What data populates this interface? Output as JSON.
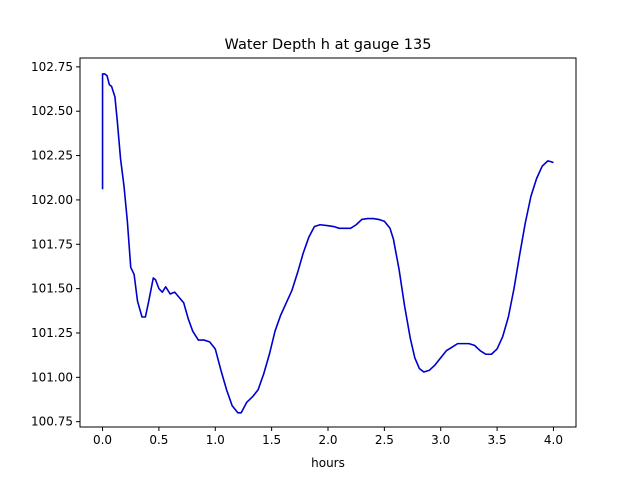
{
  "chart_data": {
    "type": "line",
    "title": "Water Depth h at gauge 135",
    "xlabel": "hours",
    "ylabel": "",
    "xlim": [
      -0.2,
      4.2
    ],
    "ylim": [
      100.72,
      102.8
    ],
    "xticks": [
      0.0,
      0.5,
      1.0,
      1.5,
      2.0,
      2.5,
      3.0,
      3.5,
      4.0
    ],
    "xtick_labels": [
      "0.0",
      "0.5",
      "1.0",
      "1.5",
      "2.0",
      "2.5",
      "3.0",
      "3.5",
      "4.0"
    ],
    "yticks": [
      100.75,
      101.0,
      101.25,
      101.5,
      101.75,
      102.0,
      102.25,
      102.5,
      102.75
    ],
    "ytick_labels": [
      "100.75",
      "101.00",
      "101.25",
      "101.50",
      "101.75",
      "102.00",
      "102.25",
      "102.50",
      "102.75"
    ],
    "grid": false,
    "series": [
      {
        "color": "#0000cc",
        "points": [
          [
            0.0,
            102.06
          ],
          [
            0.0,
            102.71
          ],
          [
            0.02,
            102.71
          ],
          [
            0.04,
            102.7
          ],
          [
            0.06,
            102.65
          ],
          [
            0.08,
            102.64
          ],
          [
            0.11,
            102.58
          ],
          [
            0.13,
            102.45
          ],
          [
            0.16,
            102.23
          ],
          [
            0.19,
            102.08
          ],
          [
            0.22,
            101.88
          ],
          [
            0.25,
            101.62
          ],
          [
            0.28,
            101.58
          ],
          [
            0.31,
            101.43
          ],
          [
            0.35,
            101.34
          ],
          [
            0.38,
            101.34
          ],
          [
            0.41,
            101.43
          ],
          [
            0.45,
            101.56
          ],
          [
            0.47,
            101.55
          ],
          [
            0.5,
            101.5
          ],
          [
            0.53,
            101.48
          ],
          [
            0.56,
            101.51
          ],
          [
            0.6,
            101.47
          ],
          [
            0.64,
            101.48
          ],
          [
            0.68,
            101.45
          ],
          [
            0.72,
            101.42
          ],
          [
            0.76,
            101.33
          ],
          [
            0.8,
            101.26
          ],
          [
            0.85,
            101.21
          ],
          [
            0.9,
            101.21
          ],
          [
            0.95,
            101.2
          ],
          [
            1.0,
            101.16
          ],
          [
            1.05,
            101.04
          ],
          [
            1.1,
            100.93
          ],
          [
            1.15,
            100.84
          ],
          [
            1.2,
            100.8
          ],
          [
            1.23,
            100.8
          ],
          [
            1.28,
            100.86
          ],
          [
            1.33,
            100.89
          ],
          [
            1.38,
            100.93
          ],
          [
            1.43,
            101.02
          ],
          [
            1.48,
            101.13
          ],
          [
            1.53,
            101.26
          ],
          [
            1.58,
            101.35
          ],
          [
            1.63,
            101.42
          ],
          [
            1.68,
            101.49
          ],
          [
            1.73,
            101.59
          ],
          [
            1.78,
            101.7
          ],
          [
            1.83,
            101.79
          ],
          [
            1.88,
            101.85
          ],
          [
            1.93,
            101.86
          ],
          [
            2.0,
            101.855
          ],
          [
            2.05,
            101.85
          ],
          [
            2.1,
            101.84
          ],
          [
            2.15,
            101.84
          ],
          [
            2.2,
            101.84
          ],
          [
            2.25,
            101.86
          ],
          [
            2.3,
            101.89
          ],
          [
            2.35,
            101.895
          ],
          [
            2.4,
            101.895
          ],
          [
            2.45,
            101.89
          ],
          [
            2.5,
            101.88
          ],
          [
            2.55,
            101.84
          ],
          [
            2.58,
            101.78
          ],
          [
            2.63,
            101.61
          ],
          [
            2.68,
            101.4
          ],
          [
            2.73,
            101.22
          ],
          [
            2.77,
            101.11
          ],
          [
            2.81,
            101.05
          ],
          [
            2.85,
            101.03
          ],
          [
            2.9,
            101.04
          ],
          [
            2.95,
            101.07
          ],
          [
            3.0,
            101.11
          ],
          [
            3.05,
            101.15
          ],
          [
            3.1,
            101.17
          ],
          [
            3.15,
            101.19
          ],
          [
            3.2,
            101.19
          ],
          [
            3.25,
            101.19
          ],
          [
            3.3,
            101.18
          ],
          [
            3.35,
            101.15
          ],
          [
            3.4,
            101.13
          ],
          [
            3.45,
            101.13
          ],
          [
            3.5,
            101.16
          ],
          [
            3.55,
            101.23
          ],
          [
            3.6,
            101.34
          ],
          [
            3.65,
            101.5
          ],
          [
            3.7,
            101.69
          ],
          [
            3.75,
            101.87
          ],
          [
            3.8,
            102.02
          ],
          [
            3.85,
            102.12
          ],
          [
            3.9,
            102.19
          ],
          [
            3.95,
            102.22
          ],
          [
            3.98,
            102.215
          ],
          [
            4.0,
            102.21
          ]
        ]
      }
    ]
  }
}
